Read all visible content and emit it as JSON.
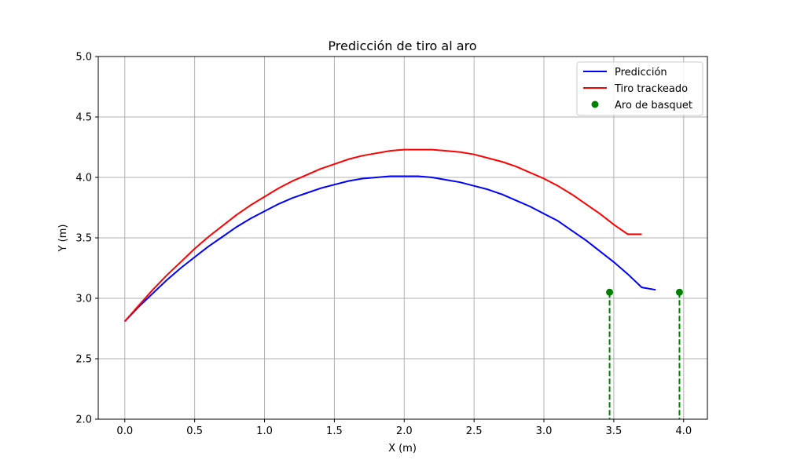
{
  "chart_data": {
    "type": "line",
    "title": "Predicción de tiro al aro",
    "xlabel": "X (m)",
    "ylabel": "Y (m)",
    "xlim": [
      -0.19,
      4.17
    ],
    "ylim": [
      2.0,
      5.0
    ],
    "xticks": [
      0.0,
      0.5,
      1.0,
      1.5,
      2.0,
      2.5,
      3.0,
      3.5,
      4.0
    ],
    "xtick_labels": [
      "0.0",
      "0.5",
      "1.0",
      "1.5",
      "2.0",
      "2.5",
      "3.0",
      "3.5",
      "4.0"
    ],
    "yticks": [
      2.0,
      2.5,
      3.0,
      3.5,
      4.0,
      4.5,
      5.0
    ],
    "ytick_labels": [
      "2.0",
      "2.5",
      "3.0",
      "3.5",
      "4.0",
      "4.5",
      "5.0"
    ],
    "grid": true,
    "legend_position": "top-right",
    "series": [
      {
        "name": "Predicción",
        "color": "#0000ff",
        "x": [
          0.0,
          0.1,
          0.2,
          0.3,
          0.4,
          0.5,
          0.6,
          0.7,
          0.8,
          0.9,
          1.0,
          1.1,
          1.2,
          1.3,
          1.4,
          1.5,
          1.6,
          1.7,
          1.8,
          1.9,
          2.0,
          2.1,
          2.2,
          2.3,
          2.4,
          2.5,
          2.6,
          2.7,
          2.8,
          2.9,
          3.0,
          3.1,
          3.2,
          3.3,
          3.4,
          3.5,
          3.6,
          3.7,
          3.8
        ],
        "y": [
          2.81,
          2.93,
          3.04,
          3.15,
          3.25,
          3.34,
          3.43,
          3.51,
          3.59,
          3.66,
          3.72,
          3.78,
          3.83,
          3.87,
          3.91,
          3.94,
          3.97,
          3.99,
          4.0,
          4.01,
          4.01,
          4.01,
          4.0,
          3.98,
          3.96,
          3.93,
          3.9,
          3.86,
          3.81,
          3.76,
          3.7,
          3.64,
          3.56,
          3.48,
          3.39,
          3.3,
          3.2,
          3.09,
          3.07
        ]
      },
      {
        "name": "Tiro trackeado",
        "color": "#ff0000",
        "x": [
          0.0,
          0.1,
          0.2,
          0.3,
          0.4,
          0.5,
          0.6,
          0.7,
          0.8,
          0.9,
          1.0,
          1.1,
          1.2,
          1.3,
          1.4,
          1.5,
          1.6,
          1.7,
          1.8,
          1.9,
          2.0,
          2.1,
          2.2,
          2.3,
          2.4,
          2.5,
          2.6,
          2.7,
          2.8,
          2.9,
          3.0,
          3.1,
          3.2,
          3.3,
          3.4,
          3.5,
          3.6,
          3.7
        ],
        "y": [
          2.81,
          2.94,
          3.07,
          3.19,
          3.3,
          3.41,
          3.51,
          3.6,
          3.69,
          3.77,
          3.84,
          3.91,
          3.97,
          4.02,
          4.07,
          4.11,
          4.15,
          4.18,
          4.2,
          4.22,
          4.23,
          4.23,
          4.23,
          4.22,
          4.21,
          4.19,
          4.16,
          4.13,
          4.09,
          4.04,
          3.99,
          3.93,
          3.86,
          3.78,
          3.7,
          3.61,
          3.53,
          3.53
        ]
      }
    ],
    "points": {
      "name": "Aro de basquet",
      "color": "#008000",
      "x": [
        3.47,
        3.97
      ],
      "y": [
        3.05,
        3.05
      ]
    }
  }
}
